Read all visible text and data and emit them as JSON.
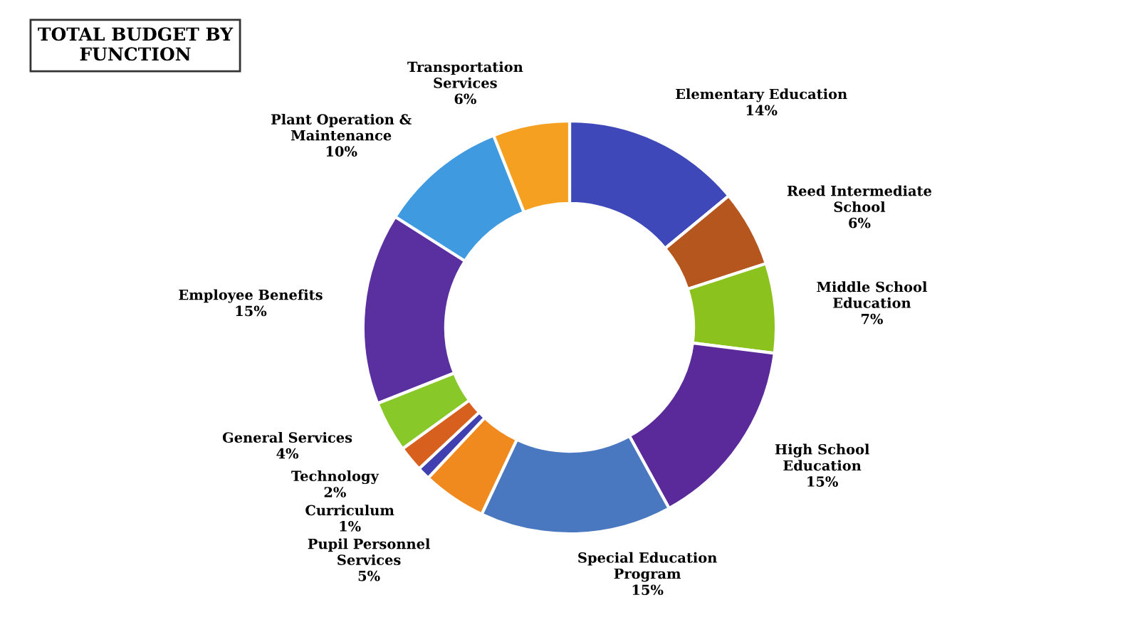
{
  "chart_data": {
    "type": "donut",
    "title": "TOTAL BUDGET BY\nFUNCTION",
    "categories": [
      "Elementary Education",
      "Reed Intermediate\nSchool",
      "Middle School\nEducation",
      "High School\nEducation",
      "Special Education\nProgram",
      "Pupil Personnel\nServices",
      "Curriculum",
      "Technology",
      "General Services",
      "Employee Benefits",
      "Plant Operation &\nMaintenance",
      "Transportation\nServices"
    ],
    "values": [
      14,
      6,
      7,
      15,
      15,
      5,
      1,
      2,
      4,
      15,
      10,
      6
    ],
    "value_labels": [
      "14%",
      "6%",
      "7%",
      "15%",
      "15%",
      "5%",
      "1%",
      "2%",
      "4%",
      "15%",
      "10%",
      "6%"
    ],
    "colors": [
      "#3f48b8",
      "#b5561e",
      "#8cc21e",
      "#5a2a9a",
      "#4a78c0",
      "#f08a1e",
      "#4040b0",
      "#d8601e",
      "#88c828",
      "#5a30a0",
      "#3f9ae0",
      "#f5a020"
    ],
    "legend": false
  }
}
